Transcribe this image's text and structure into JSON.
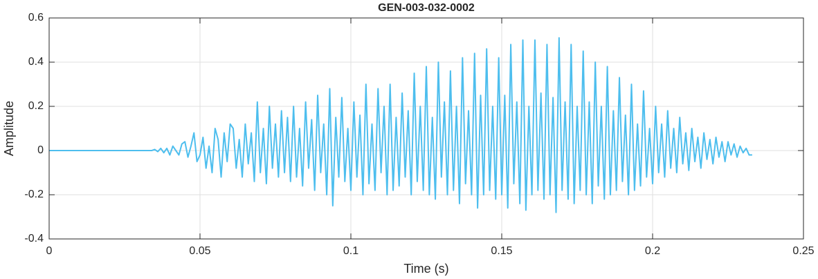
{
  "chart_data": {
    "type": "line",
    "title": "GEN-003-032-0002",
    "x_label": "Time (s)",
    "y_label": "Amplitude",
    "color": "#4dbeee",
    "grid": true,
    "xlim": [
      0,
      0.25
    ],
    "xticks": [
      0,
      0.05,
      0.1,
      0.15,
      0.2,
      0.25
    ],
    "ylim": [
      -0.4,
      0.6
    ],
    "yticks": [
      -0.4,
      -0.2,
      0,
      0.2,
      0.4,
      0.6
    ],
    "x": [
      0,
      0.001,
      0.002,
      0.003,
      0.004,
      0.005,
      0.006,
      0.007,
      0.008,
      0.009,
      0.01,
      0.011,
      0.012,
      0.013,
      0.014,
      0.015,
      0.016,
      0.017,
      0.018,
      0.019,
      0.02,
      0.021,
      0.022,
      0.023,
      0.024,
      0.025,
      0.026,
      0.027,
      0.028,
      0.029,
      0.03,
      0.031,
      0.032,
      0.033,
      0.034,
      0.035,
      0.036,
      0.037,
      0.038,
      0.039,
      0.04,
      0.041,
      0.042,
      0.043,
      0.044,
      0.045,
      0.046,
      0.047,
      0.048,
      0.049,
      0.05,
      0.051,
      0.052,
      0.053,
      0.054,
      0.055,
      0.056,
      0.057,
      0.058,
      0.059,
      0.06,
      0.061,
      0.062,
      0.063,
      0.064,
      0.065,
      0.066,
      0.067,
      0.068,
      0.069,
      0.07,
      0.071,
      0.072,
      0.073,
      0.074,
      0.075,
      0.076,
      0.077,
      0.078,
      0.079,
      0.08,
      0.081,
      0.082,
      0.083,
      0.084,
      0.085,
      0.086,
      0.087,
      0.088,
      0.089,
      0.09,
      0.091,
      0.092,
      0.093,
      0.094,
      0.095,
      0.096,
      0.097,
      0.098,
      0.099,
      0.1,
      0.101,
      0.102,
      0.103,
      0.104,
      0.105,
      0.106,
      0.107,
      0.108,
      0.109,
      0.11,
      0.111,
      0.112,
      0.113,
      0.114,
      0.115,
      0.116,
      0.117,
      0.118,
      0.119,
      0.12,
      0.121,
      0.122,
      0.123,
      0.124,
      0.125,
      0.126,
      0.127,
      0.128,
      0.129,
      0.13,
      0.131,
      0.132,
      0.133,
      0.134,
      0.135,
      0.136,
      0.137,
      0.138,
      0.139,
      0.14,
      0.141,
      0.142,
      0.143,
      0.144,
      0.145,
      0.146,
      0.147,
      0.148,
      0.149,
      0.15,
      0.151,
      0.152,
      0.153,
      0.154,
      0.155,
      0.156,
      0.157,
      0.158,
      0.159,
      0.16,
      0.161,
      0.162,
      0.163,
      0.164,
      0.165,
      0.166,
      0.167,
      0.168,
      0.169,
      0.17,
      0.171,
      0.172,
      0.173,
      0.174,
      0.175,
      0.176,
      0.177,
      0.178,
      0.179,
      0.18,
      0.181,
      0.182,
      0.183,
      0.184,
      0.185,
      0.186,
      0.187,
      0.188,
      0.189,
      0.19,
      0.191,
      0.192,
      0.193,
      0.194,
      0.195,
      0.196,
      0.197,
      0.198,
      0.199,
      0.2,
      0.201,
      0.202,
      0.203,
      0.204,
      0.205,
      0.206,
      0.207,
      0.208,
      0.209,
      0.21,
      0.211,
      0.212,
      0.213,
      0.214,
      0.215,
      0.216,
      0.217,
      0.218,
      0.219,
      0.22,
      0.221,
      0.222,
      0.223,
      0.224,
      0.225,
      0.226,
      0.227,
      0.228,
      0.229,
      0.23,
      0.231,
      0.232,
      0.233
    ],
    "values": [
      0,
      0,
      0,
      0,
      0,
      0,
      0,
      0,
      0,
      0,
      0,
      0,
      0,
      0,
      0,
      0,
      0,
      0,
      0,
      0,
      0,
      0,
      0,
      0,
      0,
      0,
      0,
      0,
      0,
      0,
      0,
      0,
      0,
      0,
      0,
      0.005,
      -0.005,
      0.01,
      -0.01,
      0.01,
      -0.02,
      0.02,
      0,
      -0.02,
      0.03,
      0.04,
      -0.03,
      0.02,
      0.08,
      -0.05,
      -0.02,
      0.06,
      -0.08,
      0.02,
      -0.1,
      0.1,
      0.05,
      -0.12,
      0.08,
      -0.05,
      0.12,
      0.1,
      -0.08,
      0.05,
      -0.12,
      0.12,
      -0.06,
      0.08,
      -0.14,
      0.22,
      -0.1,
      0.1,
      -0.15,
      0.2,
      -0.08,
      0.12,
      -0.12,
      0.18,
      -0.1,
      0.15,
      -0.14,
      0.2,
      -0.12,
      0.1,
      -0.16,
      0.22,
      -0.08,
      0.14,
      -0.18,
      0.25,
      -0.1,
      0.12,
      -0.2,
      0.28,
      -0.25,
      0.15,
      -0.12,
      0.24,
      -0.14,
      0.1,
      -0.18,
      0.22,
      -0.12,
      0.16,
      -0.2,
      0.3,
      -0.15,
      0.12,
      -0.18,
      0.28,
      -0.1,
      0.2,
      -0.2,
      0.3,
      -0.18,
      0.15,
      -0.16,
      0.26,
      -0.12,
      0.18,
      -0.2,
      0.35,
      -0.14,
      0.2,
      -0.18,
      0.38,
      -0.2,
      0.15,
      -0.22,
      0.4,
      -0.12,
      0.22,
      -0.2,
      0.36,
      -0.18,
      0.2,
      -0.24,
      0.42,
      -0.15,
      0.18,
      -0.2,
      0.44,
      -0.26,
      0.25,
      -0.2,
      0.46,
      -0.18,
      0.2,
      -0.22,
      0.42,
      -0.2,
      0.25,
      -0.26,
      0.48,
      -0.15,
      0.22,
      -0.24,
      0.5,
      -0.27,
      0.2,
      -0.2,
      0.5,
      -0.18,
      0.26,
      -0.22,
      0.48,
      -0.2,
      0.24,
      -0.28,
      0.51,
      -0.18,
      0.22,
      -0.22,
      0.48,
      -0.24,
      0.2,
      -0.18,
      0.45,
      -0.2,
      0.22,
      -0.24,
      0.4,
      -0.16,
      0.2,
      -0.22,
      0.38,
      -0.2,
      0.18,
      -0.18,
      0.33,
      -0.14,
      0.16,
      -0.2,
      0.3,
      -0.18,
      0.12,
      -0.16,
      0.27,
      -0.12,
      0.1,
      -0.15,
      0.2,
      -0.1,
      0.12,
      -0.12,
      0.18,
      -0.08,
      0.1,
      -0.1,
      0.15,
      -0.06,
      0.08,
      -0.09,
      0.1,
      -0.05,
      0.06,
      -0.08,
      0.08,
      -0.04,
      0.05,
      -0.06,
      0.06,
      -0.03,
      0.04,
      -0.05,
      0.04,
      -0.02,
      0.03,
      -0.03,
      0.02,
      -0.01,
      0.01,
      -0.02,
      -0.02
    ]
  }
}
